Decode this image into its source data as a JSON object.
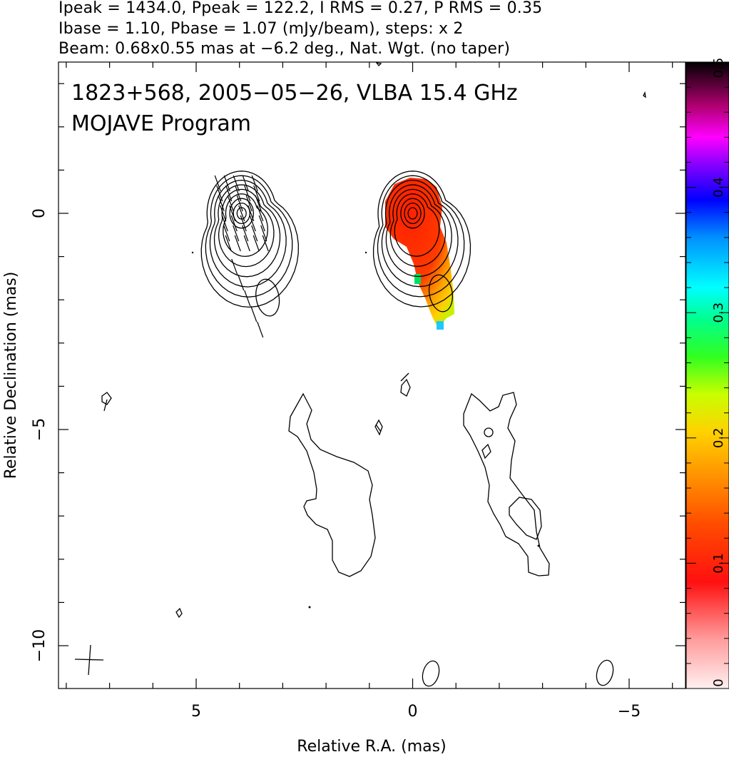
{
  "header": {
    "line1": "Ipeak = 1434.0, Ppeak = 122.2, I RMS = 0.27, P RMS = 0.35",
    "line2": "Ibase = 1.10, Pbase = 1.07 (mJy/beam), steps: x 2",
    "line3": "Beam: 0.68x0.55 mas at −6.2 deg., Nat. Wgt. (no taper)"
  },
  "annotations": {
    "source": "1823+568, 2005−05−26, VLBA 15.4 GHz",
    "program": "MOJAVE Program"
  },
  "chart_data": {
    "type": "contour",
    "xlabel": "Relative R.A. (mas)",
    "ylabel": "Relative Declination (mas)",
    "xlim": [
      8.1,
      -6.3
    ],
    "ylim": [
      -11.0,
      3.5
    ],
    "x_ticks": [
      5,
      0,
      -5
    ],
    "x_tick_labels": [
      "5",
      "0",
      "−5"
    ],
    "y_ticks": [
      0,
      -5,
      -10
    ],
    "y_tick_labels": [
      "0",
      "−5",
      "−10"
    ],
    "colorbar": {
      "range": [
        0,
        0.5
      ],
      "ticks": [
        0,
        0.1,
        0.2,
        0.3,
        0.4,
        0.5
      ],
      "tick_labels": [
        "0",
        "0.1",
        "0.2",
        "0.3",
        "0.4",
        "0.5"
      ]
    },
    "beam": {
      "major_mas": 0.68,
      "minor_mas": 0.55,
      "pa_deg": -6.2
    },
    "panels": [
      {
        "name": "Stokes I contours with EVPA ticks",
        "core": {
          "x": 3.95,
          "y": 0.0
        },
        "knot": {
          "x": 3.35,
          "y": -1.85
        },
        "contour_levels": 9
      },
      {
        "name": "Stokes I contours with fractional polarization",
        "core": {
          "x": 0.0,
          "y": 0.0
        },
        "knot": {
          "x": -0.65,
          "y": -1.75
        },
        "contour_levels": 9
      }
    ]
  }
}
